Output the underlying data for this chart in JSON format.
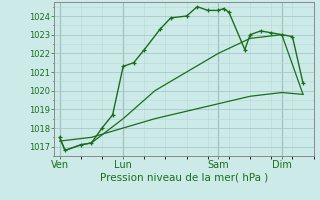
{
  "background_color": "#cceae8",
  "grid_color_major": "#a8c8cc",
  "grid_color_minor": "#b8d8d8",
  "line_color": "#1a6e1a",
  "spine_color": "#888888",
  "title": "Pression niveau de la mer( hPa )",
  "ylim": [
    1016.5,
    1024.75
  ],
  "yticks": [
    1017,
    1018,
    1019,
    1020,
    1021,
    1022,
    1023,
    1024
  ],
  "xtick_labels": [
    "Ven",
    "Lun",
    "Sam",
    "Dim"
  ],
  "xtick_positions": [
    0,
    6,
    15,
    21
  ],
  "xlim": [
    -0.5,
    24
  ],
  "vline_positions": [
    0,
    6,
    15,
    21
  ],
  "series1_x": [
    0,
    0.5,
    2,
    3,
    4,
    5,
    6,
    7,
    8,
    9.5,
    10.5,
    12,
    13,
    14,
    15,
    15.5,
    16,
    17.5,
    18,
    19,
    20,
    21,
    22,
    23
  ],
  "series1_y": [
    1017.5,
    1016.8,
    1017.1,
    1017.2,
    1018.0,
    1018.7,
    1021.3,
    1021.5,
    1022.2,
    1023.3,
    1023.9,
    1024.0,
    1024.5,
    1024.3,
    1024.3,
    1024.4,
    1024.2,
    1022.2,
    1023.0,
    1023.2,
    1023.1,
    1023.0,
    1022.9,
    1020.4
  ],
  "series2_x": [
    0,
    0.5,
    2,
    3,
    6,
    9,
    12,
    15,
    18,
    21,
    23
  ],
  "series2_y": [
    1017.5,
    1016.8,
    1017.1,
    1017.2,
    1018.5,
    1020.0,
    1021.0,
    1022.0,
    1022.8,
    1023.0,
    1019.8
  ],
  "series3_x": [
    0,
    3,
    6,
    9,
    12,
    15,
    18,
    21,
    23
  ],
  "series3_y": [
    1017.3,
    1017.5,
    1018.0,
    1018.5,
    1018.9,
    1019.3,
    1019.7,
    1019.9,
    1019.8
  ]
}
